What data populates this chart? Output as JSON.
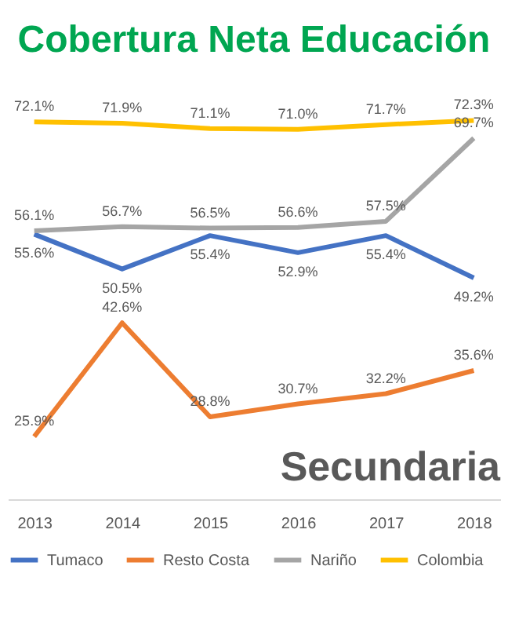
{
  "chart_data": {
    "type": "line",
    "title": "Cobertura Neta Educación",
    "annotations": [
      "Secundaria"
    ],
    "categories": [
      "2013",
      "2014",
      "2015",
      "2016",
      "2017",
      "2018"
    ],
    "series": [
      {
        "name": "Tumaco",
        "color": "#4472c4",
        "values": [
          55.6,
          50.5,
          55.4,
          52.9,
          55.4,
          49.2
        ],
        "value_labels": [
          "55.6%",
          "50.5%",
          "55.4%",
          "52.9%",
          "55.4%",
          "49.2%"
        ]
      },
      {
        "name": "Resto Costa",
        "color": "#ed7d31",
        "values": [
          25.9,
          42.6,
          28.8,
          30.7,
          32.2,
          35.6
        ],
        "value_labels": [
          "25.9%",
          "42.6%",
          "28.8%",
          "30.7%",
          "32.2%",
          "35.6%"
        ]
      },
      {
        "name": "Nariño",
        "color": "#a5a5a5",
        "values": [
          56.1,
          56.7,
          56.5,
          56.6,
          57.5,
          69.7
        ],
        "value_labels": [
          "56.1%",
          "56.7%",
          "56.5%",
          "56.6%",
          "57.5%",
          "69.7%"
        ]
      },
      {
        "name": "Colombia",
        "color": "#ffc000",
        "values": [
          72.1,
          71.9,
          71.1,
          71.0,
          71.7,
          72.3
        ],
        "value_labels": [
          "72.1%",
          "71.9%",
          "71.1%",
          "71.0%",
          "71.7%",
          "72.3%"
        ]
      }
    ],
    "grid": false,
    "legend": "bottom",
    "marker": "none"
  }
}
